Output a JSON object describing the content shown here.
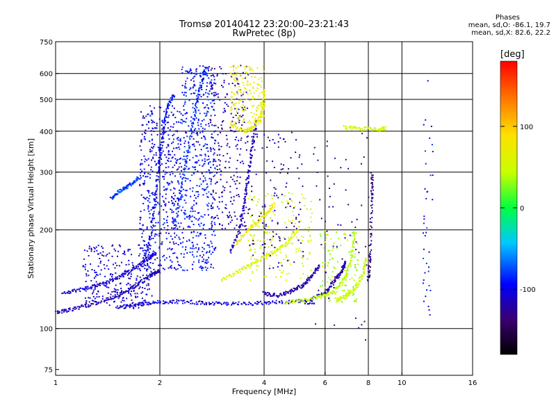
{
  "chart_data": {
    "type": "scatter",
    "title": "Tromsø 20140412 23:20:00–23:21:43",
    "subtitle": "RwPretec (8p)",
    "xlabel": "Frequency [MHz]",
    "ylabel": "Stationary phase Virtual Height [km]",
    "x_scale": "log",
    "y_scale": "log",
    "xlim": [
      1,
      16
    ],
    "ylim": [
      72,
      750
    ],
    "x_ticks": [
      1,
      2,
      4,
      6,
      8,
      10,
      16
    ],
    "y_ticks": [
      75,
      100,
      200,
      300,
      400,
      500,
      600,
      750
    ],
    "x_grid": [
      2,
      4,
      6,
      8,
      10
    ],
    "y_grid": [
      100,
      200,
      300,
      400,
      500,
      600
    ],
    "phase_legend": {
      "heading": "Phases",
      "line_o": "mean, sd,O: -86.1, 19.7",
      "line_x": "mean, sd,X:  82.6, 22.2"
    },
    "colorbar": {
      "label": "[deg]",
      "ticks": [
        100,
        0,
        -100
      ],
      "range": [
        -180,
        180
      ]
    },
    "traces": [
      {
        "color_deg": -115,
        "points": [
          [
            1.0,
            112
          ],
          [
            1.1,
            114
          ],
          [
            1.25,
            118
          ],
          [
            1.45,
            124
          ],
          [
            1.6,
            130
          ],
          [
            1.75,
            138
          ],
          [
            1.9,
            146
          ],
          [
            2.0,
            150
          ]
        ]
      },
      {
        "color_deg": -110,
        "points": [
          [
            1.05,
            128
          ],
          [
            1.2,
            132
          ],
          [
            1.35,
            136
          ],
          [
            1.5,
            142
          ],
          [
            1.65,
            150
          ],
          [
            1.8,
            160
          ],
          [
            1.95,
            170
          ]
        ]
      },
      {
        "color_deg": -105,
        "points": [
          [
            1.5,
            116
          ],
          [
            1.7,
            118
          ],
          [
            1.9,
            120
          ],
          [
            2.2,
            121
          ],
          [
            2.6,
            120
          ],
          [
            3.0,
            119
          ],
          [
            3.6,
            119
          ],
          [
            4.2,
            120
          ],
          [
            5.0,
            121
          ],
          [
            5.6,
            120
          ]
        ]
      },
      {
        "color_deg": -95,
        "points": [
          [
            1.8,
            160
          ],
          [
            1.9,
            200
          ],
          [
            1.95,
            260
          ],
          [
            2.0,
            330
          ],
          [
            2.05,
            400
          ],
          [
            2.1,
            470
          ],
          [
            2.2,
            520
          ]
        ]
      },
      {
        "color_deg": -85,
        "points": [
          [
            2.2,
            200
          ],
          [
            2.3,
            260
          ],
          [
            2.4,
            340
          ],
          [
            2.5,
            430
          ],
          [
            2.6,
            530
          ],
          [
            2.7,
            620
          ]
        ]
      },
      {
        "color_deg": -80,
        "points": [
          [
            1.45,
            250
          ],
          [
            1.55,
            265
          ],
          [
            1.65,
            275
          ],
          [
            1.75,
            290
          ]
        ]
      },
      {
        "color_deg": -120,
        "points": [
          [
            4.0,
            128
          ],
          [
            4.4,
            126
          ],
          [
            4.8,
            130
          ],
          [
            5.2,
            136
          ],
          [
            5.5,
            145
          ],
          [
            5.8,
            155
          ]
        ]
      },
      {
        "color_deg": -120,
        "points": [
          [
            5.4,
            122
          ],
          [
            6.0,
            128
          ],
          [
            6.4,
            140
          ],
          [
            6.7,
            150
          ],
          [
            6.9,
            160
          ]
        ]
      },
      {
        "color_deg": -115,
        "points": [
          [
            3.2,
            170
          ],
          [
            3.4,
            200
          ],
          [
            3.5,
            240
          ],
          [
            3.6,
            290
          ],
          [
            3.7,
            360
          ],
          [
            3.8,
            430
          ]
        ]
      },
      {
        "color_deg": 60,
        "points": [
          [
            3.0,
            140
          ],
          [
            3.4,
            150
          ],
          [
            3.8,
            160
          ],
          [
            4.2,
            170
          ],
          [
            4.6,
            180
          ],
          [
            5.0,
            200
          ]
        ]
      },
      {
        "color_deg": 45,
        "points": [
          [
            4.6,
            120
          ],
          [
            5.2,
            122
          ],
          [
            5.8,
            125
          ],
          [
            6.4,
            130
          ],
          [
            6.9,
            145
          ],
          [
            7.2,
            170
          ],
          [
            7.3,
            200
          ]
        ]
      },
      {
        "color_deg": 70,
        "points": [
          [
            3.2,
            420
          ],
          [
            3.5,
            400
          ],
          [
            3.7,
            410
          ],
          [
            3.9,
            440
          ],
          [
            4.0,
            480
          ],
          [
            4.0,
            540
          ]
        ]
      },
      {
        "color_deg": 80,
        "points": [
          [
            3.3,
            180
          ],
          [
            3.6,
            200
          ],
          [
            4.0,
            220
          ],
          [
            4.3,
            240
          ]
        ]
      },
      {
        "color_deg": 50,
        "points": [
          [
            6.5,
            122
          ],
          [
            6.9,
            126
          ],
          [
            7.3,
            132
          ],
          [
            7.7,
            145
          ],
          [
            7.9,
            165
          ]
        ]
      },
      {
        "color_deg": 55,
        "points": [
          [
            6.8,
            410
          ],
          [
            7.4,
            408
          ],
          [
            8.5,
            405
          ],
          [
            9.0,
            408
          ]
        ]
      },
      {
        "color_deg": -130,
        "points": [
          [
            8.0,
            140
          ],
          [
            8.1,
            170
          ],
          [
            8.2,
            250
          ],
          [
            8.2,
            300
          ]
        ]
      }
    ],
    "clusters": [
      {
        "color_deg": -100,
        "f": [
          1.75,
          2.3
        ],
        "h": [
          150,
          480
        ],
        "n": 480
      },
      {
        "color_deg": -90,
        "f": [
          2.3,
          2.9
        ],
        "h": [
          150,
          640
        ],
        "n": 520
      },
      {
        "color_deg": -110,
        "f": [
          1.2,
          1.9
        ],
        "h": [
          115,
          180
        ],
        "n": 260
      },
      {
        "color_deg": -120,
        "f": [
          2.8,
          3.6
        ],
        "h": [
          200,
          640
        ],
        "n": 260
      },
      {
        "color_deg": 70,
        "f": [
          3.2,
          4.0
        ],
        "h": [
          420,
          640
        ],
        "n": 160
      },
      {
        "color_deg": 55,
        "f": [
          3.6,
          5.5
        ],
        "h": [
          140,
          260
        ],
        "n": 180
      },
      {
        "color_deg": -125,
        "f": [
          3.6,
          5.2
        ],
        "h": [
          150,
          400
        ],
        "n": 120
      },
      {
        "color_deg": 40,
        "f": [
          5.8,
          7.5
        ],
        "h": [
          120,
          200
        ],
        "n": 120
      },
      {
        "color_deg": -130,
        "f": [
          5.5,
          8.2
        ],
        "h": [
          90,
          400
        ],
        "n": 60
      },
      {
        "color_deg": -95,
        "f": [
          11.5,
          12.3
        ],
        "h": [
          110,
          680
        ],
        "n": 40
      }
    ]
  }
}
